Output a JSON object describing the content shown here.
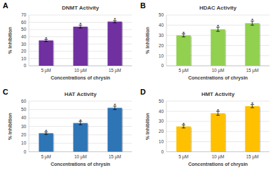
{
  "chart_data": [
    {
      "type": "bar",
      "panel": "A",
      "title": "DNMT Activity",
      "x_label": "Concentrations of chrysin",
      "y_label": "% Inhibition",
      "categories": [
        "5 µM",
        "10 µM",
        "15 µM"
      ],
      "values": [
        35,
        54,
        61
      ],
      "errors": [
        1.5,
        2,
        1.5
      ],
      "annotations": [
        "*",
        "*",
        "*"
      ],
      "color": "#7030a0",
      "ylim": [
        0,
        70
      ],
      "yticks": [
        0,
        10,
        20,
        30,
        40,
        50,
        60,
        70
      ],
      "grid": true
    },
    {
      "type": "bar",
      "panel": "B",
      "title": "HDAC Activity",
      "x_label": "Concentrations of chrysin",
      "y_label": "% Inhibition",
      "categories": [
        "5 µM",
        "10 µM",
        "15 µM"
      ],
      "values": [
        30,
        36,
        42
      ],
      "errors": [
        1.5,
        2,
        2
      ],
      "annotations": [
        "*",
        "*",
        "*"
      ],
      "color": "#92d050",
      "ylim": [
        0,
        50
      ],
      "yticks": [
        0,
        10,
        20,
        30,
        40,
        50
      ],
      "grid": true
    },
    {
      "type": "bar",
      "panel": "C",
      "title": "HAT Activity",
      "x_label": "Concentrations of chrysin",
      "y_label": "% Inhibition",
      "categories": [
        "5 µM",
        "10 µM",
        "15 µM"
      ],
      "values": [
        22,
        34,
        52
      ],
      "errors": [
        1.5,
        2,
        2
      ],
      "annotations": [
        "*",
        "*",
        "*"
      ],
      "color": "#2e75b6",
      "ylim": [
        0,
        60
      ],
      "yticks": [
        0,
        10,
        20,
        30,
        40,
        50,
        60
      ],
      "grid": true
    },
    {
      "type": "bar",
      "panel": "D",
      "title": "HMT Activity",
      "x_label": "Concentrations of chrysin",
      "y_label": "% Inhibition",
      "categories": [
        "5 µM",
        "10 µM",
        "15 µM"
      ],
      "values": [
        25,
        38,
        45
      ],
      "errors": [
        1.5,
        2,
        1.5
      ],
      "annotations": [
        "*",
        "*",
        "*"
      ],
      "color": "#ffc000",
      "ylim": [
        0,
        50
      ],
      "yticks": [
        0,
        10,
        20,
        30,
        40,
        50
      ],
      "grid": true
    }
  ]
}
